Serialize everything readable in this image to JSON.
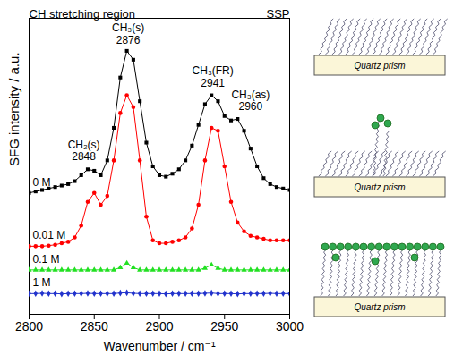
{
  "chart_data": {
    "type": "line",
    "title": "CH stretching region",
    "subtitle": "SSP",
    "x_label": "Wavenumber / cm⁻¹",
    "y_label": "SFG intensity / a.u.",
    "x": [
      2800,
      2805,
      2810,
      2815,
      2820,
      2825,
      2830,
      2835,
      2840,
      2845,
      2850,
      2855,
      2860,
      2865,
      2870,
      2875,
      2880,
      2885,
      2890,
      2895,
      2900,
      2905,
      2910,
      2915,
      2920,
      2925,
      2930,
      2935,
      2940,
      2945,
      2950,
      2955,
      2960,
      2965,
      2970,
      2975,
      2980,
      2985,
      2990,
      2995,
      3000
    ],
    "series": [
      {
        "name": "0 M",
        "color": "#000000",
        "marker": "square",
        "values": [
          41,
          41.5,
          42,
          42.5,
          43,
          43.5,
          44,
          45,
          47,
          49,
          48.5,
          47,
          52,
          63,
          80,
          89,
          86,
          72,
          58,
          50,
          47,
          46.5,
          47.5,
          49,
          52,
          57,
          64,
          71,
          74,
          72,
          67,
          65.5,
          66,
          62,
          56,
          50,
          46,
          44,
          43,
          42.5,
          42
        ]
      },
      {
        "name": "0.01 M",
        "color": "#ff0000",
        "marker": "circle",
        "values": [
          23,
          23,
          23,
          23.2,
          23.5,
          24,
          24.5,
          26,
          30,
          38,
          41,
          37,
          40,
          52,
          68,
          74,
          70,
          52,
          33,
          25,
          24,
          24,
          24.5,
          25,
          26,
          29,
          37,
          52,
          63,
          62,
          50,
          38,
          31,
          28,
          26.5,
          26,
          25.5,
          25,
          25,
          25,
          25
        ]
      },
      {
        "name": "0.1 M",
        "color": "#22e022",
        "marker": "triangle",
        "values": [
          15,
          15,
          15,
          15,
          15,
          15,
          15,
          15,
          15,
          15,
          15,
          15,
          15,
          15,
          15.8,
          17.3,
          15.8,
          15,
          15,
          15,
          15,
          15,
          15,
          15,
          15,
          15,
          15,
          15.6,
          16.7,
          15.6,
          15,
          15,
          15,
          15,
          15,
          15,
          15,
          15,
          15,
          15,
          15
        ]
      },
      {
        "name": "1 M",
        "color": "#2233cc",
        "marker": "diamond",
        "values": [
          7,
          7,
          7.1,
          7,
          7,
          6.9,
          7,
          7,
          7,
          7.1,
          7,
          7,
          7,
          7,
          7.2,
          7.3,
          7.1,
          7,
          7,
          7,
          7,
          6.9,
          7,
          7,
          7,
          7,
          7,
          7.1,
          7.2,
          7,
          7,
          7,
          6.9,
          7,
          7,
          7,
          7,
          7.1,
          7,
          7,
          7
        ]
      }
    ],
    "xlim": [
      2800,
      3000
    ],
    "xticks": [
      2800,
      2850,
      2900,
      2950,
      3000
    ],
    "ylim": [
      0,
      100
    ],
    "yticks": [],
    "tick_labels": "x",
    "annotations": [
      {
        "text": "CH₂(s)\n2848",
        "x": 2842,
        "y": 52
      },
      {
        "text": "CH₃(s)\n2876",
        "x": 2876,
        "y": 91.5
      },
      {
        "text": "CH₃(FR)\n2941",
        "x": 2941,
        "y": 77
      },
      {
        "text": "CH₃(as)\n2960",
        "x": 2970,
        "y": 69
      }
    ]
  },
  "schematic": {
    "panels": [
      {
        "label": "Quartz prism"
      },
      {
        "label": "Quartz prism"
      },
      {
        "label": "Quartz prism"
      }
    ]
  }
}
